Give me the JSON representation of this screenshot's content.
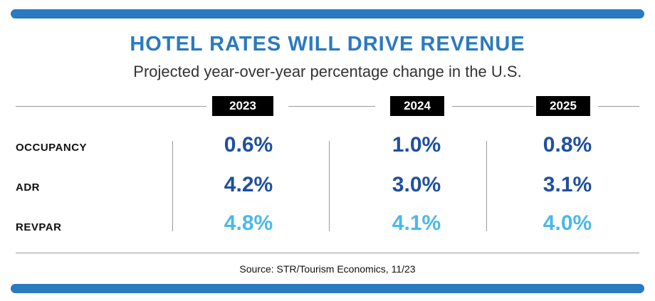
{
  "title": "HOTEL RATES WILL DRIVE REVENUE",
  "subtitle": "Projected year-over-year percentage change in the U.S.",
  "source": "Source: STR/Tourism Economics, 11/23",
  "colors": {
    "accent": "#2a7ac0",
    "dark_blue": "#1f4fa0",
    "light_blue": "#4bb8e8"
  },
  "chart_data": {
    "type": "table",
    "title": "HOTEL RATES WILL DRIVE REVENUE",
    "subtitle": "Projected year-over-year percentage change in the U.S.",
    "columns": [
      "2023",
      "2024",
      "2025"
    ],
    "rows": [
      {
        "label": "OCCUPANCY",
        "values": [
          "0.6%",
          "1.0%",
          "0.8%"
        ],
        "numeric": [
          0.6,
          1.0,
          0.8
        ]
      },
      {
        "label": "ADR",
        "values": [
          "4.2%",
          "3.0%",
          "3.1%"
        ],
        "numeric": [
          4.2,
          3.0,
          3.1
        ]
      },
      {
        "label": "REVPAR",
        "values": [
          "4.8%",
          "4.1%",
          "4.0%"
        ],
        "numeric": [
          4.8,
          4.1,
          4.0
        ]
      }
    ]
  }
}
